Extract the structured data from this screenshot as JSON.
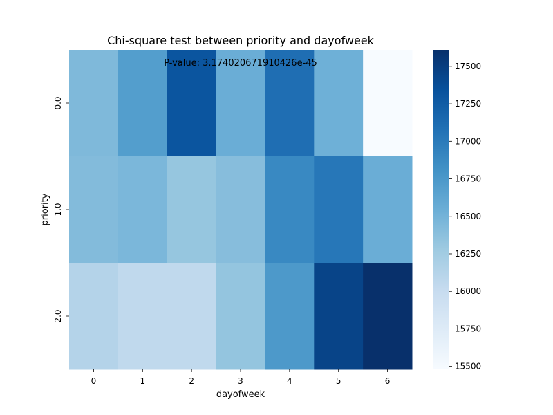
{
  "chart_data": {
    "type": "heatmap",
    "title": "Chi-square test between priority and dayofweek",
    "xlabel": "dayofweek",
    "ylabel": "priority",
    "x_categories": [
      "0",
      "1",
      "2",
      "3",
      "4",
      "5",
      "6"
    ],
    "y_categories": [
      "0.0",
      "1.0",
      "2.0"
    ],
    "values": [
      [
        16440,
        16700,
        17310,
        16550,
        17100,
        16530,
        15480
      ],
      [
        16420,
        16460,
        16320,
        16400,
        16880,
        17030,
        16550
      ],
      [
        16130,
        16050,
        16050,
        16330,
        16740,
        17450,
        17610
      ]
    ],
    "annotation": "P-value: 3.174020671910426e-45",
    "colormap": "Blues",
    "vmin": 15480,
    "vmax": 17610,
    "colorbar_ticks": [
      15500,
      15750,
      16000,
      16250,
      16500,
      16750,
      17000,
      17250,
      17500
    ],
    "colorbar_tick_labels": [
      "15500",
      "15750",
      "16000",
      "16250",
      "16500",
      "16750",
      "17000",
      "17250",
      "17500"
    ],
    "grid": false
  }
}
